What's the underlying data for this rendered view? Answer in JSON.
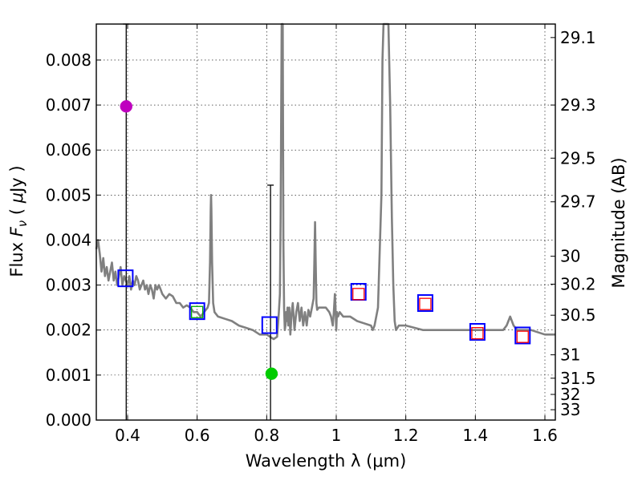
{
  "chart_data": {
    "type": "line",
    "title": "",
    "xlabel": "Wavelength  λ (μm)",
    "ylabel": "Flux  F_ν  ( μJy )",
    "ylabel_parts": [
      "Flux ",
      "F",
      "ν",
      " ( ",
      "μ",
      "Jy )"
    ],
    "y2label": "Magnitude (AB)",
    "xlim": [
      0.31,
      1.63
    ],
    "ylim": [
      0.0,
      0.0088
    ],
    "grid": true,
    "x_ticks": [
      0.4,
      0.6,
      0.8,
      1.0,
      1.2,
      1.4,
      1.6
    ],
    "x_tick_labels": [
      "0.4",
      "0.6",
      "0.8",
      "1",
      "1.2",
      "1.4",
      "1.6"
    ],
    "y_ticks": [
      0.0,
      0.001,
      0.002,
      0.003,
      0.004,
      0.005,
      0.006,
      0.007,
      0.008
    ],
    "y_tick_labels": [
      "0.000",
      "0.001",
      "0.002",
      "0.003",
      "0.004",
      "0.005",
      "0.006",
      "0.007",
      "0.008"
    ],
    "y2_ticks": [
      {
        "label": "29.1",
        "flux": 0.0085
      },
      {
        "label": "29.3",
        "flux": 0.007
      },
      {
        "label": "29.5",
        "flux": 0.00582
      },
      {
        "label": "29.7",
        "flux": 0.00485
      },
      {
        "label": "30",
        "flux": 0.00364
      },
      {
        "label": "30.2",
        "flux": 0.00302
      },
      {
        "label": "30.5",
        "flux": 0.00233
      },
      {
        "label": "31",
        "flux": 0.00145
      },
      {
        "label": "31.5",
        "flux": 0.00093
      },
      {
        "label": "32",
        "flux": 0.00057
      },
      {
        "label": "33",
        "flux": 0.00023
      }
    ],
    "series": [
      {
        "name": "model spectrum",
        "type": "line",
        "color": "#808080",
        "x": [
          0.31,
          0.315,
          0.32,
          0.325,
          0.33,
          0.335,
          0.34,
          0.345,
          0.35,
          0.355,
          0.36,
          0.365,
          0.37,
          0.375,
          0.38,
          0.385,
          0.39,
          0.395,
          0.4,
          0.405,
          0.41,
          0.415,
          0.42,
          0.425,
          0.43,
          0.435,
          0.44,
          0.445,
          0.45,
          0.455,
          0.46,
          0.465,
          0.47,
          0.475,
          0.48,
          0.485,
          0.49,
          0.495,
          0.5,
          0.51,
          0.52,
          0.53,
          0.54,
          0.55,
          0.56,
          0.57,
          0.58,
          0.59,
          0.6,
          0.61,
          0.62,
          0.63,
          0.634,
          0.637,
          0.639,
          0.64,
          0.641,
          0.643,
          0.646,
          0.65,
          0.66,
          0.68,
          0.7,
          0.72,
          0.74,
          0.76,
          0.78,
          0.8,
          0.82,
          0.83,
          0.835,
          0.838,
          0.84,
          0.843,
          0.846,
          0.848,
          0.85,
          0.852,
          0.854,
          0.856,
          0.858,
          0.86,
          0.862,
          0.865,
          0.868,
          0.872,
          0.875,
          0.88,
          0.885,
          0.89,
          0.895,
          0.9,
          0.905,
          0.91,
          0.915,
          0.92,
          0.925,
          0.93,
          0.935,
          0.937,
          0.939,
          0.941,
          0.943,
          0.945,
          0.95,
          0.96,
          0.97,
          0.98,
          0.985,
          0.99,
          0.993,
          0.996,
          0.998,
          1.0,
          1.002,
          1.005,
          1.01,
          1.02,
          1.04,
          1.06,
          1.08,
          1.1,
          1.105,
          1.11,
          1.12,
          1.13,
          1.133,
          1.136,
          1.14,
          1.145,
          1.15,
          1.155,
          1.16,
          1.164,
          1.168,
          1.172,
          1.18,
          1.2,
          1.25,
          1.3,
          1.35,
          1.4,
          1.45,
          1.48,
          1.49,
          1.5,
          1.51,
          1.52,
          1.53,
          1.56,
          1.6,
          1.63
        ],
        "y": [
          0.0038,
          0.004,
          0.0037,
          0.0033,
          0.0036,
          0.0032,
          0.0034,
          0.0031,
          0.0033,
          0.0035,
          0.0031,
          0.0033,
          0.003,
          0.0032,
          0.0034,
          0.003,
          0.0032,
          0.0031,
          0.003,
          0.0032,
          0.0029,
          0.0031,
          0.003,
          0.0032,
          0.0031,
          0.0029,
          0.003,
          0.0031,
          0.0029,
          0.003,
          0.0028,
          0.003,
          0.0029,
          0.0027,
          0.003,
          0.0029,
          0.003,
          0.0029,
          0.0028,
          0.0027,
          0.0028,
          0.00275,
          0.0026,
          0.0026,
          0.0025,
          0.00255,
          0.0025,
          0.0024,
          0.0024,
          0.0023,
          0.0024,
          0.0025,
          0.0026,
          0.0035,
          0.0047,
          0.005,
          0.0047,
          0.0035,
          0.0026,
          0.0024,
          0.0023,
          0.00225,
          0.0022,
          0.0021,
          0.00205,
          0.002,
          0.0019,
          0.0019,
          0.0018,
          0.00185,
          0.0024,
          0.0028,
          0.0045,
          0.009,
          0.009,
          0.004,
          0.0025,
          0.002,
          0.0021,
          0.0024,
          0.0022,
          0.0025,
          0.0021,
          0.0025,
          0.0019,
          0.0024,
          0.0026,
          0.002,
          0.0024,
          0.0026,
          0.0022,
          0.0025,
          0.0021,
          0.0024,
          0.0021,
          0.00245,
          0.0023,
          0.0025,
          0.0027,
          0.0035,
          0.0044,
          0.0035,
          0.0026,
          0.00245,
          0.0025,
          0.0025,
          0.0025,
          0.0024,
          0.0023,
          0.0021,
          0.0024,
          0.0028,
          0.0025,
          0.002,
          0.0024,
          0.0023,
          0.0024,
          0.0023,
          0.0023,
          0.0022,
          0.00215,
          0.0021,
          0.002,
          0.0021,
          0.0025,
          0.005,
          0.008,
          0.009,
          0.009,
          0.009,
          0.009,
          0.007,
          0.0045,
          0.003,
          0.0022,
          0.002,
          0.0021,
          0.0021,
          0.002,
          0.002,
          0.002,
          0.002,
          0.002,
          0.002,
          0.0021,
          0.0023,
          0.0021,
          0.002,
          0.002,
          0.002,
          0.0019,
          0.0019
        ]
      },
      {
        "name": "observed photometry",
        "type": "scatter",
        "marker": "square-open",
        "color": "#0000ff",
        "x": [
          0.394,
          0.6,
          0.808,
          1.064,
          1.256,
          1.406,
          1.536
        ],
        "y": [
          0.00315,
          0.00242,
          0.00211,
          0.00285,
          0.0026,
          0.00196,
          0.00188
        ]
      },
      {
        "name": "model photometry",
        "type": "scatter",
        "marker": "square-open-small",
        "color": "#ff0000",
        "x": [
          1.064,
          1.256,
          1.406,
          1.536
        ],
        "y": [
          0.0028,
          0.00258,
          0.00193,
          0.00185
        ]
      },
      {
        "name": "model photometry (green)",
        "type": "scatter",
        "marker": "square-open-small",
        "color": "#00aa00",
        "x": [
          0.6
        ],
        "y": [
          0.0024
        ]
      },
      {
        "name": "upper limit (magenta)",
        "type": "scatter",
        "marker": "circle",
        "color": "#bf00bf",
        "x": [
          0.396
        ],
        "y": [
          0.00697
        ],
        "error_x": 0.396,
        "error_low": 0.0,
        "error_high": 0.0088
      },
      {
        "name": "upper limit (green)",
        "type": "scatter",
        "marker": "circle",
        "color": "#00cc00",
        "x": [
          0.814
        ],
        "y": [
          0.00103
        ],
        "error_x": 0.811,
        "error_low": 0.0,
        "error_high": 0.00522
      }
    ]
  }
}
